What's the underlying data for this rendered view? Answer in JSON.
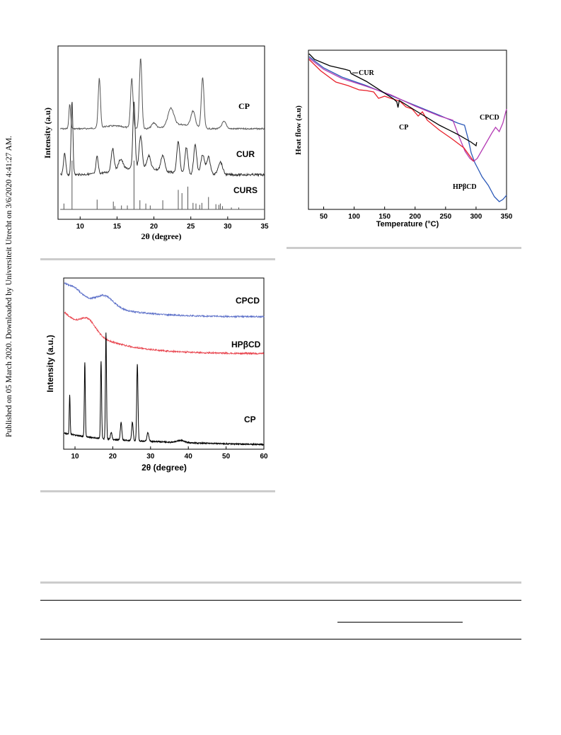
{
  "sidebar_text": "Published on 05 March 2020. Downloaded by Universiteit Utrecht on 3/6/2020 4:41:27 AM.",
  "figures": {
    "xrd_top": {
      "xlabel": "2θ (degree)",
      "ylabel": "Intensity (a.u)",
      "xticks": [
        "10",
        "15",
        "20",
        "25",
        "30",
        "35"
      ],
      "labels": [
        "CP",
        "CUR",
        "CURS"
      ]
    },
    "dsc": {
      "xlabel": "Temperature (°C)",
      "ylabel": "Heat flow (a.u)",
      "xticks": [
        "50",
        "100",
        "150",
        "200",
        "250",
        "300",
        "350"
      ],
      "labels": [
        "CUR",
        "CP",
        "CPCD",
        "HPβCD"
      ],
      "colors": {
        "CUR": "#000000",
        "CP": "#e8202a",
        "CPCD": "#b43cb4",
        "HPβCD": "#2a58b8"
      }
    },
    "xrd_bottom": {
      "xlabel": "2θ (degree)",
      "ylabel": "Intensity (a.u.)",
      "xticks": [
        "10",
        "20",
        "30",
        "40",
        "50",
        "60"
      ],
      "labels": [
        "CPCD",
        "HPβCD",
        "CP"
      ],
      "colors": {
        "CPCD": "#5a6ec8",
        "HPβCD": "#e8404a",
        "CP": "#000000"
      }
    }
  }
}
